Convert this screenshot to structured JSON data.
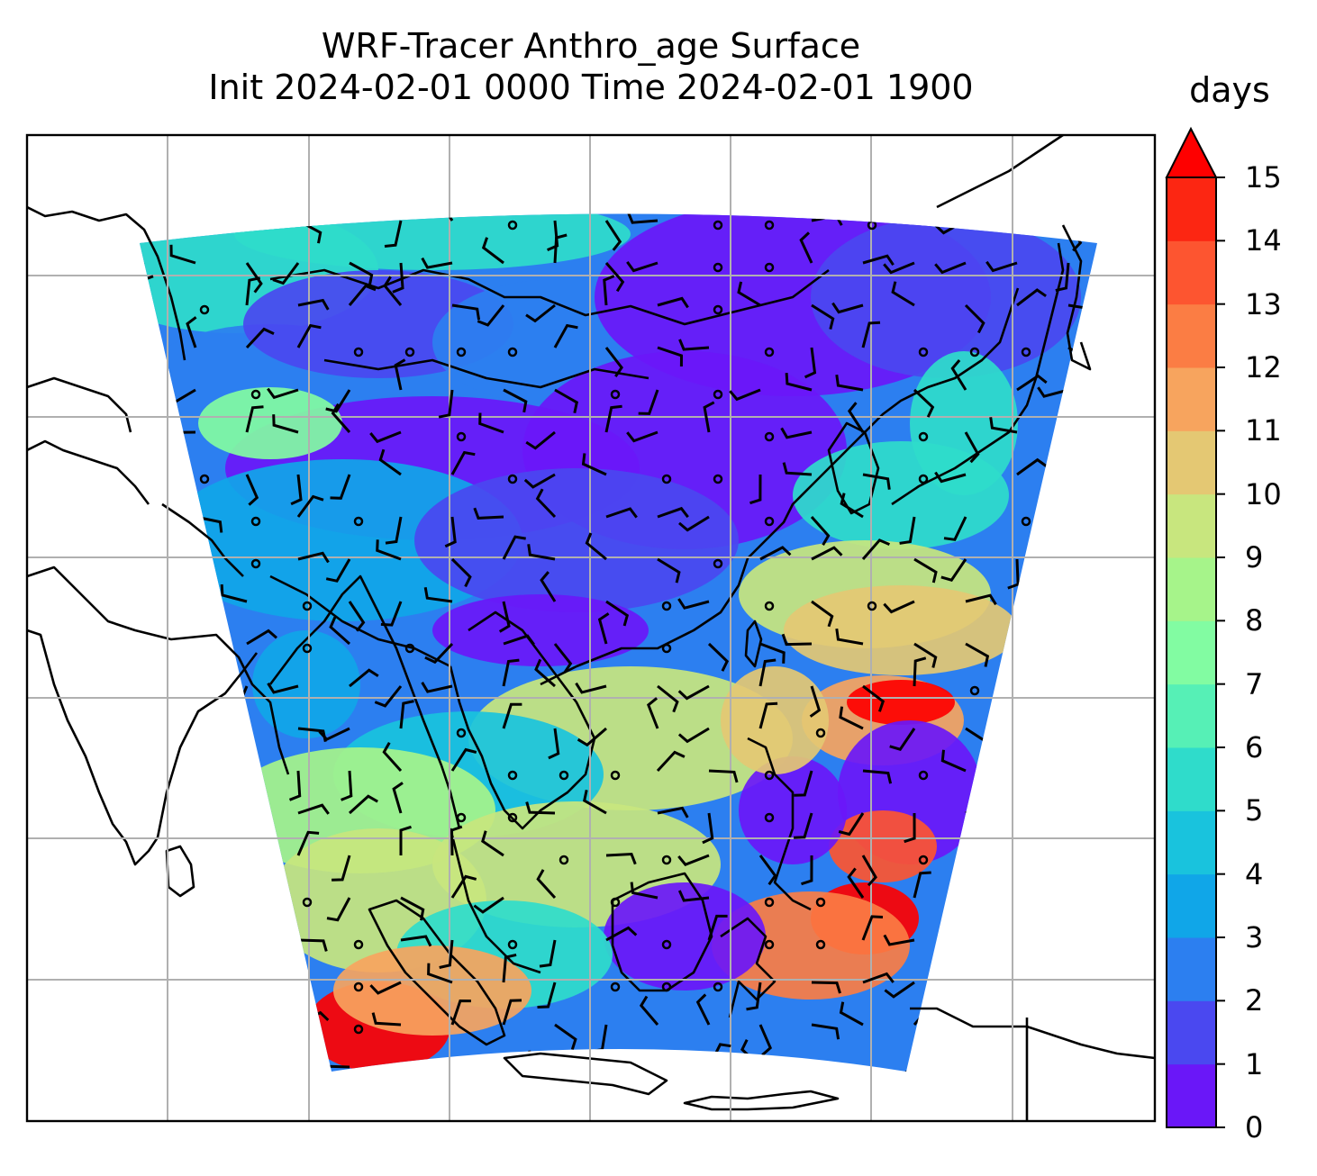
{
  "title": {
    "line1": "WRF-Tracer Anthro_age Surface",
    "line2": "Init 2024-02-01 0000 Time 2024-02-01 1900"
  },
  "colorbar": {
    "unit": "days",
    "ticks": [
      "0",
      "1",
      "2",
      "3",
      "4",
      "5",
      "6",
      "7",
      "8",
      "9",
      "10",
      "11",
      "12",
      "13",
      "14",
      "15"
    ],
    "extend": "max",
    "colors": [
      "#6a17f8",
      "#4a48f0",
      "#2c7ff0",
      "#10a6e8",
      "#19c3dd",
      "#2fdccb",
      "#56f0b6",
      "#82fca2",
      "#a6f48a",
      "#c8e67e",
      "#e4c873",
      "#f7a45e",
      "#fb7d44",
      "#fd5530",
      "#fc2612"
    ],
    "over_color": "#fe0000"
  },
  "map": {
    "grid": "on",
    "variable": "Anthro_age",
    "wind_barbs": "on",
    "region": "South and East Asia"
  }
}
